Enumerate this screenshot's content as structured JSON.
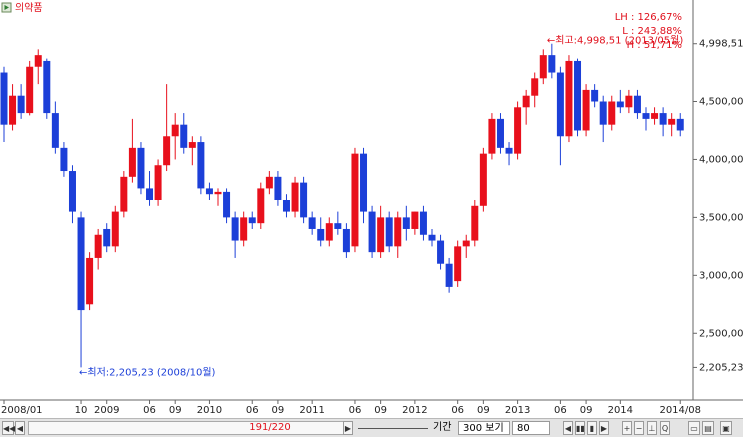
{
  "chart_data": {
    "type": "candlestick",
    "title": "의약품",
    "categories": [
      "2008/01",
      null,
      null,
      null,
      null,
      null,
      null,
      null,
      null,
      "10",
      null,
      null,
      "2009",
      null,
      null,
      null,
      null,
      "06",
      null,
      null,
      "09",
      null,
      null,
      null,
      "2010",
      null,
      null,
      null,
      null,
      "06",
      null,
      null,
      "09",
      null,
      null,
      null,
      "2011",
      null,
      null,
      null,
      null,
      "06",
      null,
      null,
      "09",
      null,
      null,
      null,
      "2012",
      null,
      null,
      null,
      null,
      "06",
      null,
      null,
      "09",
      null,
      null,
      null,
      "2013",
      null,
      null,
      null,
      null,
      "06",
      null,
      null,
      "09",
      null,
      null,
      null,
      "2014",
      null,
      null,
      null,
      null,
      null,
      null,
      "2014/08"
    ],
    "open": [
      4750,
      4300,
      4550,
      4400,
      4800,
      4850,
      4400,
      4100,
      3900,
      3500,
      2750,
      3150,
      3400,
      3250,
      3550,
      3850,
      4100,
      3750,
      3650,
      3950,
      4200,
      4300,
      4100,
      4150,
      3750,
      3700,
      3720,
      3500,
      3300,
      3500,
      3450,
      3750,
      3850,
      3650,
      3550,
      3800,
      3500,
      3400,
      3300,
      3450,
      3400,
      3250,
      4050,
      3550,
      3200,
      3500,
      3250,
      3500,
      3400,
      3550,
      3350,
      3300,
      3100,
      2950,
      3250,
      3300,
      3600,
      4050,
      4350,
      4100,
      4050,
      4450,
      4550,
      4700,
      4900,
      4750,
      4200,
      4850,
      4250,
      4600,
      4500,
      4300,
      4500,
      4450,
      4550,
      4400,
      4350,
      4400,
      4300,
      4350
    ],
    "high": [
      4800,
      4650,
      4650,
      4850,
      4950,
      4870,
      4500,
      4150,
      3950,
      3550,
      3200,
      3400,
      3450,
      3600,
      3900,
      4350,
      4150,
      3900,
      4000,
      4650,
      4400,
      4400,
      4200,
      4200,
      3800,
      3750,
      3750,
      3550,
      3550,
      3550,
      3800,
      3900,
      3900,
      3700,
      3850,
      3850,
      3550,
      3500,
      3500,
      3550,
      3450,
      4100,
      4100,
      3600,
      3600,
      3550,
      3550,
      3600,
      3550,
      3600,
      3400,
      3350,
      3150,
      3300,
      3350,
      3650,
      4100,
      4400,
      4400,
      4150,
      4500,
      4600,
      4750,
      4950,
      4998.51,
      4800,
      4900,
      4870,
      4650,
      4650,
      4550,
      4550,
      4600,
      4600,
      4600,
      4450,
      4450,
      4450,
      4400,
      4400
    ],
    "low": [
      4150,
      4250,
      4350,
      4380,
      4650,
      4350,
      4050,
      3850,
      3450,
      2205.23,
      2700,
      3050,
      3200,
      3200,
      3500,
      3800,
      3700,
      3600,
      3600,
      3900,
      4000,
      4050,
      3950,
      3700,
      3650,
      3600,
      3450,
      3150,
      3250,
      3400,
      3400,
      3700,
      3600,
      3500,
      3500,
      3450,
      3350,
      3250,
      3250,
      3350,
      3150,
      3200,
      3450,
      3150,
      3150,
      3200,
      3150,
      3300,
      3350,
      3300,
      3250,
      3050,
      2850,
      2900,
      3150,
      3250,
      3550,
      4000,
      4050,
      3950,
      4000,
      4300,
      4450,
      4650,
      4700,
      3950,
      4150,
      4200,
      4200,
      4450,
      4150,
      4250,
      4400,
      4400,
      4350,
      4250,
      4300,
      4200,
      4200,
      4200
    ],
    "close": [
      4300,
      4550,
      4400,
      4800,
      4900,
      4400,
      4100,
      3900,
      3550,
      2700,
      3150,
      3350,
      3250,
      3550,
      3850,
      4100,
      3750,
      3650,
      3950,
      4200,
      4300,
      4100,
      4150,
      3750,
      3700,
      3720,
      3500,
      3300,
      3500,
      3450,
      3750,
      3850,
      3650,
      3550,
      3800,
      3500,
      3400,
      3300,
      3450,
      3400,
      3200,
      4050,
      3550,
      3200,
      3500,
      3250,
      3500,
      3400,
      3550,
      3350,
      3300,
      3100,
      2900,
      3250,
      3300,
      3600,
      4050,
      4350,
      4100,
      4050,
      4450,
      4550,
      4700,
      4900,
      4750,
      4200,
      4850,
      4250,
      4600,
      4500,
      4300,
      4500,
      4450,
      4550,
      4400,
      4350,
      4400,
      4300,
      4350,
      4250
    ],
    "up_color": "#e8101c",
    "down_color": "#1c3fd8",
    "ylim": [
      1950,
      5350
    ],
    "yticks": [
      {
        "value": 4998.51,
        "label": "4,998,51"
      },
      {
        "value": 4500,
        "label": "4,500,00"
      },
      {
        "value": 4000,
        "label": "4,000,00"
      },
      {
        "value": 3500,
        "label": "3,500,00"
      },
      {
        "value": 3000,
        "label": "3,000,00"
      },
      {
        "value": 2500,
        "label": "2,500,00"
      },
      {
        "value": 2205.23,
        "label": "2,205,23"
      }
    ],
    "max_annotation": "←최고:4,998,51 (2013/05월)",
    "min_annotation": "←최저:2,205,23 (2008/10월)",
    "stats": [
      "LH : 126,67%",
      "L : 243,88%",
      "H : 51,71%"
    ]
  },
  "toolbar": {
    "position": "191/220",
    "period_label": "기간",
    "view": "300 보기",
    "count": "80"
  }
}
